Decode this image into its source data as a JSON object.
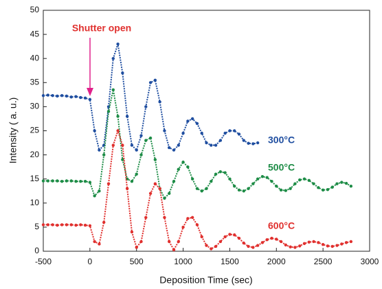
{
  "chart_data": {
    "type": "line",
    "xlabel": "Deposition Time (sec)",
    "ylabel": "Intensity ( a. u.)",
    "annotation": "Shutter open",
    "xlim": [
      -500,
      3000
    ],
    "xticks": [
      -500,
      0,
      500,
      1000,
      1500,
      2000,
      2500,
      3000
    ],
    "ylim": [
      0,
      50
    ],
    "yticks": [
      0,
      5,
      10,
      15,
      20,
      25,
      30,
      35,
      40,
      45,
      50
    ],
    "series": [
      {
        "name": "300°C",
        "color": "#1f4ea0",
        "x": [
          -500,
          -450,
          -400,
          -350,
          -300,
          -250,
          -200,
          -150,
          -100,
          -50,
          0,
          50,
          100,
          150,
          200,
          250,
          300,
          350,
          400,
          450,
          500,
          550,
          600,
          650,
          700,
          750,
          800,
          850,
          900,
          950,
          1000,
          1050,
          1100,
          1150,
          1200,
          1250,
          1300,
          1350,
          1400,
          1450,
          1500,
          1550,
          1600,
          1650,
          1700,
          1750,
          1800
        ],
        "values": [
          32.3,
          32.4,
          32.3,
          32.2,
          32.3,
          32.2,
          32.0,
          32.1,
          31.9,
          31.8,
          31.5,
          25,
          21,
          22,
          30,
          40,
          43,
          37,
          28,
          22,
          21,
          24,
          30,
          35,
          35.5,
          31,
          25,
          21.5,
          21,
          22,
          24.5,
          27,
          27.5,
          26.5,
          24.5,
          22.5,
          22,
          22,
          23,
          24.5,
          25,
          25,
          24.3,
          23,
          22.4,
          22.3,
          22.5
        ]
      },
      {
        "name": "500°C",
        "color": "#1d8c46",
        "x": [
          -500,
          -450,
          -400,
          -350,
          -300,
          -250,
          -200,
          -150,
          -100,
          -50,
          0,
          50,
          100,
          150,
          200,
          250,
          300,
          350,
          400,
          450,
          500,
          550,
          600,
          650,
          700,
          750,
          800,
          850,
          900,
          950,
          1000,
          1050,
          1100,
          1150,
          1200,
          1250,
          1300,
          1350,
          1400,
          1450,
          1500,
          1550,
          1600,
          1650,
          1700,
          1750,
          1800,
          1850,
          1900,
          1950,
          2000,
          2050,
          2100,
          2150,
          2200,
          2250,
          2300,
          2350,
          2400,
          2450,
          2500,
          2550,
          2600,
          2650,
          2700,
          2750,
          2800
        ],
        "values": [
          14.6,
          14.6,
          14.6,
          14.6,
          14.5,
          14.6,
          14.6,
          14.5,
          14.5,
          14.5,
          14.3,
          11.5,
          12.5,
          20,
          29,
          33.5,
          28,
          19,
          15,
          14.5,
          16,
          20,
          23,
          23.5,
          19,
          13,
          11,
          12,
          14.5,
          17,
          18.5,
          17.5,
          15,
          13,
          12.5,
          13,
          14.5,
          16,
          16.5,
          16.3,
          15,
          13.5,
          12.7,
          12.5,
          13,
          14,
          15,
          15.5,
          15.3,
          14.5,
          13.5,
          12.7,
          12.6,
          13,
          14,
          14.8,
          15,
          14.7,
          14,
          13.2,
          12.7,
          12.8,
          13.3,
          14,
          14.3,
          14.1,
          13.5
        ]
      },
      {
        "name": "600°C",
        "color": "#e0302e",
        "x": [
          -500,
          -450,
          -400,
          -350,
          -300,
          -250,
          -200,
          -150,
          -100,
          -50,
          0,
          50,
          100,
          150,
          200,
          250,
          300,
          350,
          400,
          450,
          500,
          550,
          600,
          650,
          700,
          750,
          800,
          850,
          900,
          950,
          1000,
          1050,
          1100,
          1150,
          1200,
          1250,
          1300,
          1350,
          1400,
          1450,
          1500,
          1550,
          1600,
          1650,
          1700,
          1750,
          1800,
          1850,
          1900,
          1950,
          2000,
          2050,
          2100,
          2150,
          2200,
          2250,
          2300,
          2350,
          2400,
          2450,
          2500,
          2550,
          2600,
          2650,
          2700,
          2750,
          2800
        ],
        "values": [
          5.5,
          5.5,
          5.5,
          5.4,
          5.5,
          5.5,
          5.5,
          5.4,
          5.5,
          5.4,
          5.3,
          2,
          1.5,
          6,
          14,
          22,
          25,
          22,
          13,
          4,
          0.8,
          2,
          7,
          12,
          14,
          13,
          7,
          2,
          0.3,
          2,
          5,
          6.8,
          7,
          5.5,
          3,
          1.2,
          0.5,
          1,
          2,
          3,
          3.5,
          3.4,
          2.7,
          1.7,
          1,
          0.8,
          1.2,
          1.8,
          2.4,
          2.7,
          2.5,
          2,
          1.3,
          0.9,
          0.8,
          1.1,
          1.6,
          1.9,
          2,
          1.8,
          1.4,
          1.1,
          1,
          1.2,
          1.5,
          1.8,
          2
        ]
      }
    ]
  }
}
